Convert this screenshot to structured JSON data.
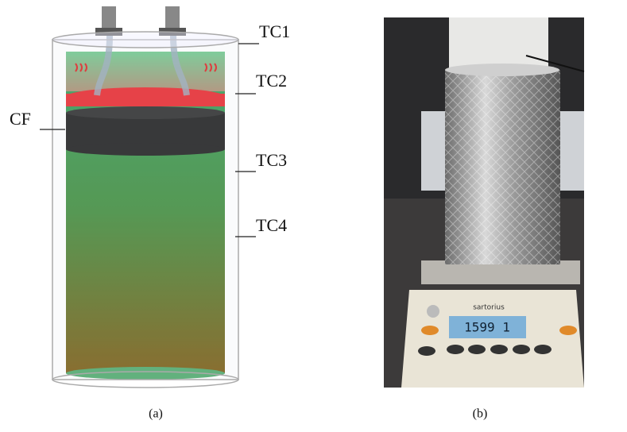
{
  "figure": {
    "panel_a": {
      "labels": {
        "tc1": "TC1",
        "tc2": "TC2",
        "cf": "CF",
        "tc3": "TC3",
        "tc4": "TC4"
      },
      "caption": "(a)"
    },
    "panel_b": {
      "brand": "sartorius",
      "display": "1599 1",
      "caption": "(b)"
    }
  }
}
